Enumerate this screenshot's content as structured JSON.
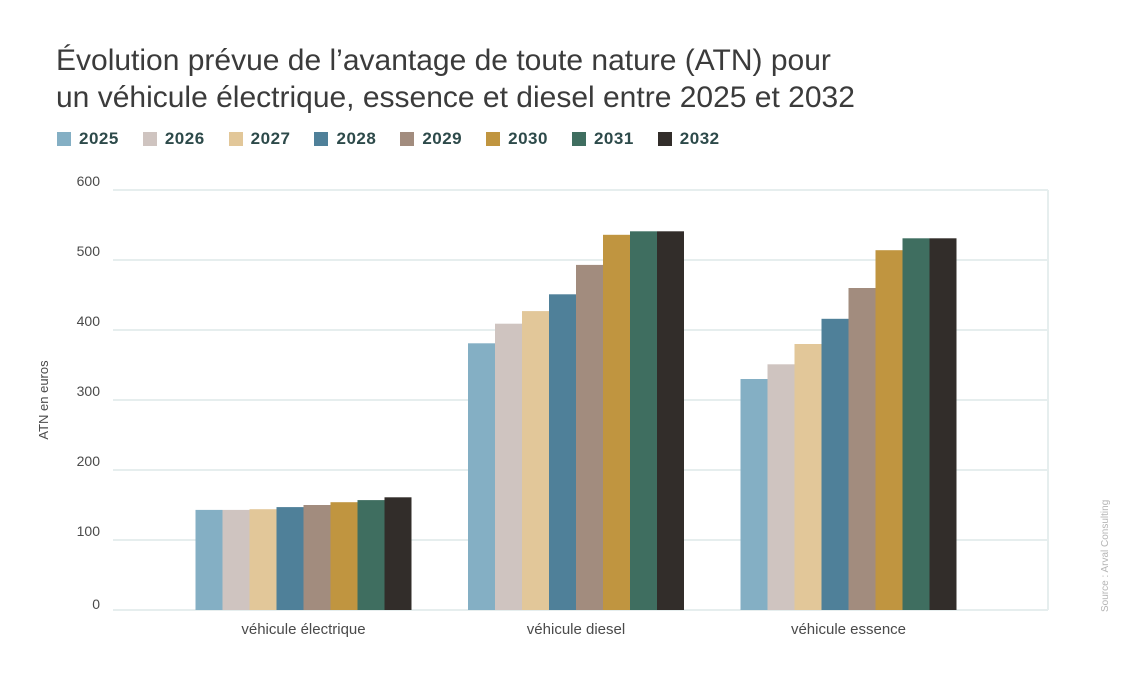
{
  "chart_data": {
    "type": "bar",
    "title": "Évolution prévue de l’avantage de toute nature (ATN) pour un véhicule électrique, essence et diesel entre 2025 et 2032",
    "title_lines": [
      "Évolution prévue de l’avantage de toute nature (ATN) pour",
      "un véhicule électrique, essence et diesel entre 2025 et 2032"
    ],
    "xlabel": "",
    "ylabel": "ATN en euros",
    "ylim": [
      0,
      600
    ],
    "yticks": [
      0,
      100,
      200,
      300,
      400,
      500,
      600
    ],
    "grid": true,
    "legend_placement": "top-left",
    "categories": [
      "véhicule électrique",
      "véhicule diesel",
      "véhicule essence"
    ],
    "series": [
      {
        "name": "2025",
        "color": "#84afc4",
        "values": [
          143,
          381,
          330
        ]
      },
      {
        "name": "2026",
        "color": "#cfc4c0",
        "values": [
          143,
          409,
          351
        ]
      },
      {
        "name": "2027",
        "color": "#e2c799",
        "values": [
          144,
          427,
          380
        ]
      },
      {
        "name": "2028",
        "color": "#4f8099",
        "values": [
          147,
          451,
          416
        ]
      },
      {
        "name": "2029",
        "color": "#a28c7e",
        "values": [
          150,
          493,
          460
        ]
      },
      {
        "name": "2030",
        "color": "#c09540",
        "values": [
          154,
          536,
          514
        ]
      },
      {
        "name": "2031",
        "color": "#3f6e60",
        "values": [
          157,
          541,
          531
        ]
      },
      {
        "name": "2032",
        "color": "#322d2a",
        "values": [
          161,
          541,
          531
        ]
      }
    ],
    "source": "Source : Arval Consulting"
  }
}
